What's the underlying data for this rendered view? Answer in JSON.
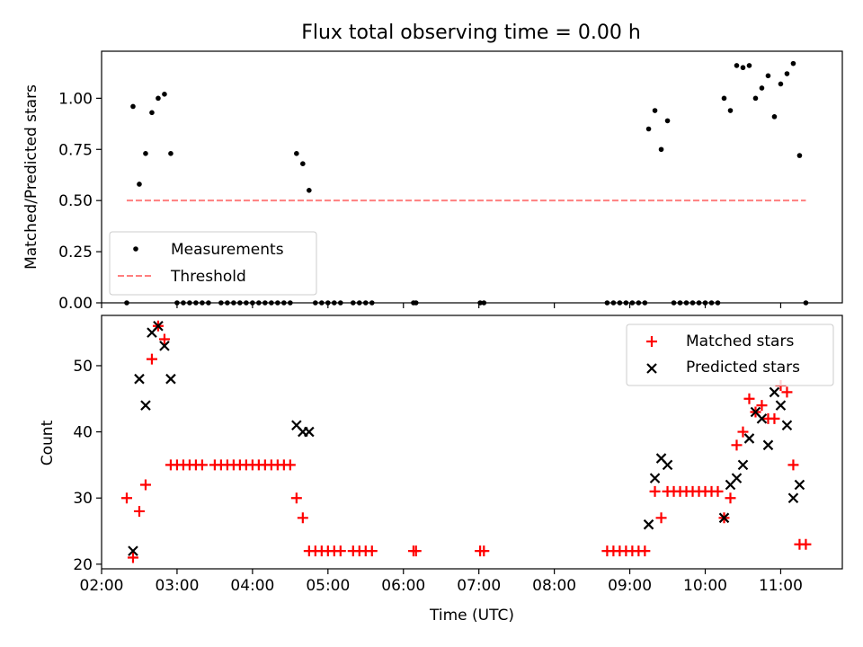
{
  "chart_data": [
    {
      "type": "scatter",
      "title": "Flux total observing time = 0.00 h",
      "xlabel": "",
      "ylabel": "Matched/Predicted stars",
      "xlim": [
        "02:00",
        "11:49"
      ],
      "ylim": [
        0,
        1.23
      ],
      "yticks": [
        "0.00",
        "0.25",
        "0.50",
        "0.75",
        "1.00"
      ],
      "grid": false,
      "legend_position": "lower-left",
      "series": [
        {
          "name": "Measurements",
          "marker": "dot",
          "color": "#000000",
          "points": [
            [
              "02:20",
              0.0
            ],
            [
              "02:25",
              0.96
            ],
            [
              "02:30",
              0.58
            ],
            [
              "02:35",
              0.73
            ],
            [
              "02:40",
              0.93
            ],
            [
              "02:45",
              1.0
            ],
            [
              "02:50",
              1.02
            ],
            [
              "02:55",
              0.73
            ],
            [
              "03:00",
              0.0
            ],
            [
              "03:05",
              0.0
            ],
            [
              "03:10",
              0.0
            ],
            [
              "03:15",
              0.0
            ],
            [
              "03:20",
              0.0
            ],
            [
              "03:25",
              0.0
            ],
            [
              "03:35",
              0.0
            ],
            [
              "03:40",
              0.0
            ],
            [
              "03:45",
              0.0
            ],
            [
              "03:50",
              0.0
            ],
            [
              "03:55",
              0.0
            ],
            [
              "04:00",
              0.0
            ],
            [
              "04:05",
              0.0
            ],
            [
              "04:10",
              0.0
            ],
            [
              "04:15",
              0.0
            ],
            [
              "04:20",
              0.0
            ],
            [
              "04:25",
              0.0
            ],
            [
              "04:30",
              0.0
            ],
            [
              "04:35",
              0.73
            ],
            [
              "04:40",
              0.68
            ],
            [
              "04:45",
              0.55
            ],
            [
              "04:50",
              0.0
            ],
            [
              "04:55",
              0.0
            ],
            [
              "05:00",
              0.0
            ],
            [
              "05:05",
              0.0
            ],
            [
              "05:10",
              0.0
            ],
            [
              "05:20",
              0.0
            ],
            [
              "05:25",
              0.0
            ],
            [
              "05:30",
              0.0
            ],
            [
              "05:35",
              0.0
            ],
            [
              "06:08",
              0.0
            ],
            [
              "06:10",
              0.0
            ],
            [
              "07:01",
              0.0
            ],
            [
              "07:04",
              0.0
            ],
            [
              "08:42",
              0.0
            ],
            [
              "08:47",
              0.0
            ],
            [
              "08:52",
              0.0
            ],
            [
              "08:57",
              0.0
            ],
            [
              "09:02",
              0.0
            ],
            [
              "09:07",
              0.0
            ],
            [
              "09:12",
              0.0
            ],
            [
              "09:15",
              0.85
            ],
            [
              "09:20",
              0.94
            ],
            [
              "09:25",
              0.75
            ],
            [
              "09:30",
              0.89
            ],
            [
              "09:35",
              0.0
            ],
            [
              "09:40",
              0.0
            ],
            [
              "09:45",
              0.0
            ],
            [
              "09:50",
              0.0
            ],
            [
              "09:55",
              0.0
            ],
            [
              "10:00",
              0.0
            ],
            [
              "10:05",
              0.0
            ],
            [
              "10:10",
              0.0
            ],
            [
              "10:15",
              1.0
            ],
            [
              "10:20",
              0.94
            ],
            [
              "10:25",
              1.16
            ],
            [
              "10:30",
              1.15
            ],
            [
              "10:35",
              1.16
            ],
            [
              "10:40",
              1.0
            ],
            [
              "10:45",
              1.05
            ],
            [
              "10:50",
              1.11
            ],
            [
              "10:55",
              0.91
            ],
            [
              "11:00",
              1.07
            ],
            [
              "11:05",
              1.12
            ],
            [
              "11:10",
              1.17
            ],
            [
              "11:15",
              0.72
            ],
            [
              "11:20",
              0.0
            ]
          ]
        },
        {
          "name": "Threshold",
          "style": "dashed-line",
          "color": "#ff7f7f",
          "points": [
            [
              "02:20",
              0.5
            ],
            [
              "11:20",
              0.5
            ]
          ]
        }
      ]
    },
    {
      "type": "scatter",
      "title": "",
      "xlabel": "Time (UTC)",
      "ylabel": "Count",
      "xlim": [
        "02:00",
        "11:49"
      ],
      "ylim": [
        19.3,
        57.6
      ],
      "xticks": [
        "02:00",
        "03:00",
        "04:00",
        "05:00",
        "06:00",
        "07:00",
        "08:00",
        "09:00",
        "10:00",
        "11:00"
      ],
      "yticks": [
        "20",
        "30",
        "40",
        "50"
      ],
      "grid": false,
      "legend_position": "upper-right",
      "series": [
        {
          "name": "Matched stars",
          "marker": "plus",
          "color": "#ff0000",
          "points": [
            [
              "02:20",
              30
            ],
            [
              "02:25",
              21
            ],
            [
              "02:30",
              28
            ],
            [
              "02:35",
              32
            ],
            [
              "02:40",
              51
            ],
            [
              "02:45",
              56
            ],
            [
              "02:50",
              54
            ],
            [
              "02:55",
              35
            ],
            [
              "03:00",
              35
            ],
            [
              "03:05",
              35
            ],
            [
              "03:10",
              35
            ],
            [
              "03:15",
              35
            ],
            [
              "03:20",
              35
            ],
            [
              "03:30",
              35
            ],
            [
              "03:35",
              35
            ],
            [
              "03:40",
              35
            ],
            [
              "03:45",
              35
            ],
            [
              "03:50",
              35
            ],
            [
              "03:55",
              35
            ],
            [
              "04:00",
              35
            ],
            [
              "04:05",
              35
            ],
            [
              "04:10",
              35
            ],
            [
              "04:15",
              35
            ],
            [
              "04:20",
              35
            ],
            [
              "04:25",
              35
            ],
            [
              "04:30",
              35
            ],
            [
              "04:35",
              30
            ],
            [
              "04:40",
              27
            ],
            [
              "04:45",
              22
            ],
            [
              "04:50",
              22
            ],
            [
              "04:55",
              22
            ],
            [
              "05:00",
              22
            ],
            [
              "05:05",
              22
            ],
            [
              "05:10",
              22
            ],
            [
              "05:20",
              22
            ],
            [
              "05:25",
              22
            ],
            [
              "05:30",
              22
            ],
            [
              "05:35",
              22
            ],
            [
              "06:08",
              22
            ],
            [
              "06:10",
              22
            ],
            [
              "07:01",
              22
            ],
            [
              "07:04",
              22
            ],
            [
              "08:42",
              22
            ],
            [
              "08:47",
              22
            ],
            [
              "08:52",
              22
            ],
            [
              "08:57",
              22
            ],
            [
              "09:02",
              22
            ],
            [
              "09:07",
              22
            ],
            [
              "09:12",
              22
            ],
            [
              "09:20",
              31
            ],
            [
              "09:25",
              27
            ],
            [
              "09:30",
              31
            ],
            [
              "09:35",
              31
            ],
            [
              "09:40",
              31
            ],
            [
              "09:45",
              31
            ],
            [
              "09:50",
              31
            ],
            [
              "09:55",
              31
            ],
            [
              "10:00",
              31
            ],
            [
              "10:05",
              31
            ],
            [
              "10:10",
              31
            ],
            [
              "10:15",
              27
            ],
            [
              "10:20",
              30
            ],
            [
              "10:25",
              38
            ],
            [
              "10:30",
              40
            ],
            [
              "10:35",
              45
            ],
            [
              "10:40",
              43
            ],
            [
              "10:45",
              44
            ],
            [
              "10:50",
              42
            ],
            [
              "10:55",
              42
            ],
            [
              "11:00",
              47
            ],
            [
              "11:05",
              46
            ],
            [
              "11:10",
              35
            ],
            [
              "11:15",
              23
            ],
            [
              "11:20",
              23
            ]
          ]
        },
        {
          "name": "Predicted stars",
          "marker": "x",
          "color": "#000000",
          "points": [
            [
              "02:25",
              22
            ],
            [
              "02:30",
              48
            ],
            [
              "02:35",
              44
            ],
            [
              "02:40",
              55
            ],
            [
              "02:45",
              56
            ],
            [
              "02:50",
              53
            ],
            [
              "02:55",
              48
            ],
            [
              "04:35",
              41
            ],
            [
              "04:40",
              40
            ],
            [
              "04:45",
              40
            ],
            [
              "09:15",
              26
            ],
            [
              "09:20",
              33
            ],
            [
              "09:25",
              36
            ],
            [
              "09:30",
              35
            ],
            [
              "10:15",
              27
            ],
            [
              "10:20",
              32
            ],
            [
              "10:25",
              33
            ],
            [
              "10:30",
              35
            ],
            [
              "10:35",
              39
            ],
            [
              "10:40",
              43
            ],
            [
              "10:45",
              42
            ],
            [
              "10:50",
              38
            ],
            [
              "10:55",
              46
            ],
            [
              "11:00",
              44
            ],
            [
              "11:05",
              41
            ],
            [
              "11:10",
              30
            ],
            [
              "11:15",
              32
            ]
          ]
        }
      ]
    }
  ]
}
